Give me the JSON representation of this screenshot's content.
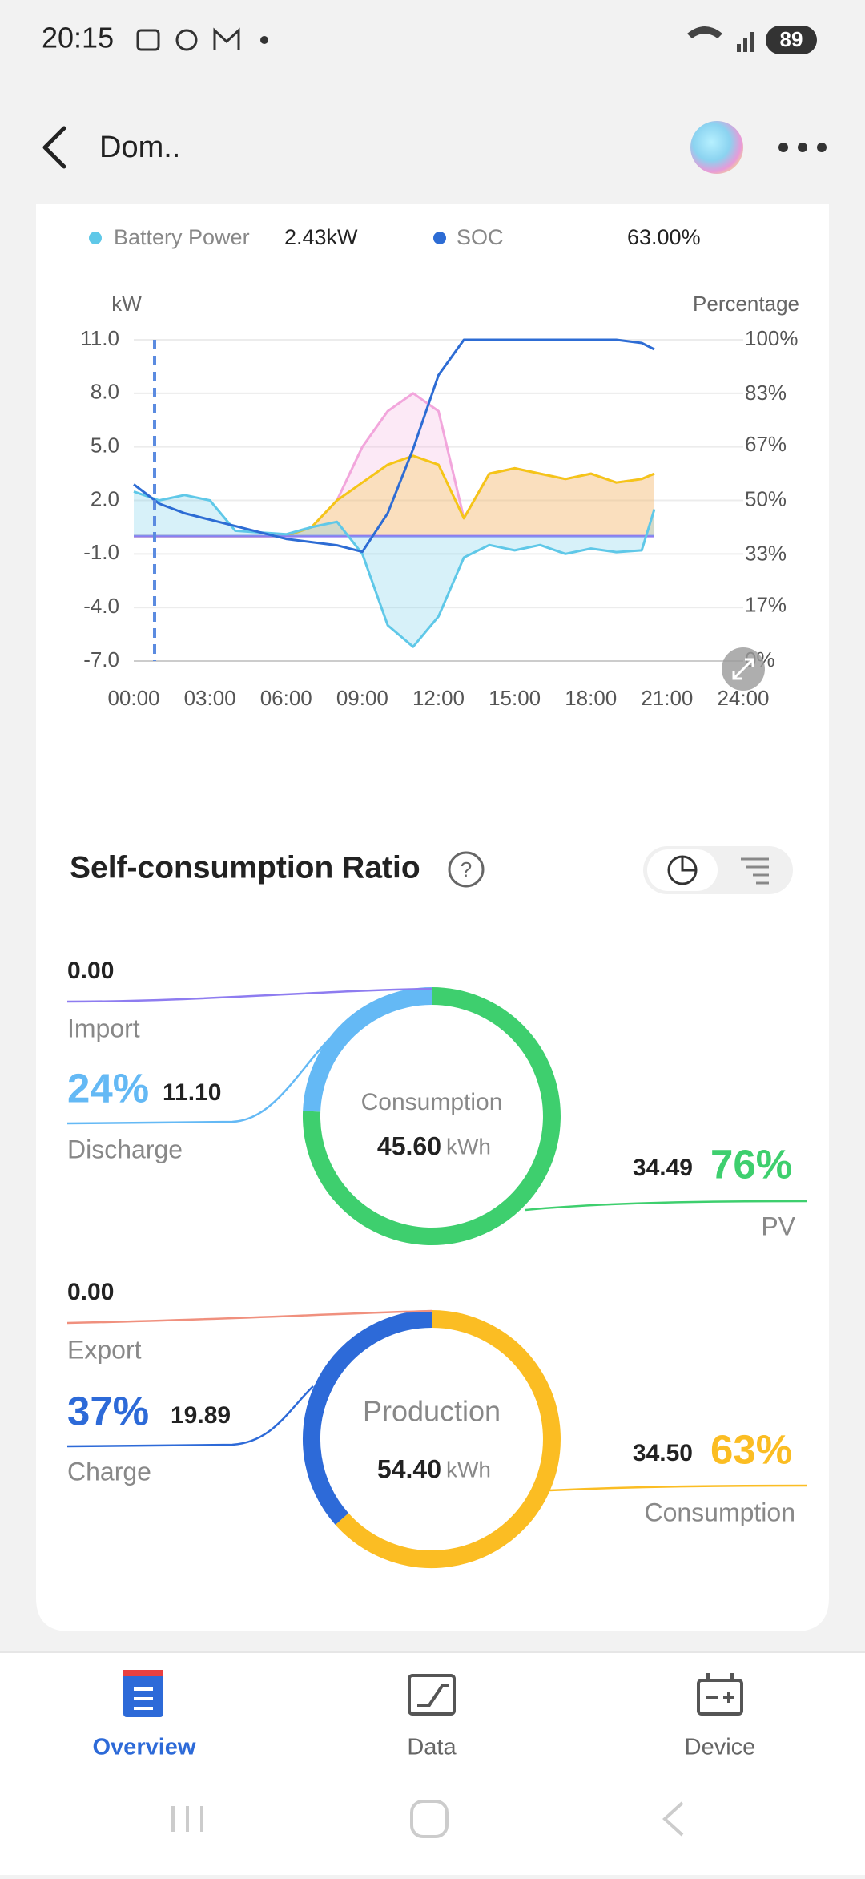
{
  "status_bar": {
    "time": "20:15",
    "battery": "89"
  },
  "header": {
    "title": "Dom.."
  },
  "chart_data": {
    "type": "line",
    "x": [
      0,
      1,
      2,
      3,
      4,
      5,
      6,
      7,
      8,
      9,
      10,
      11,
      12,
      13,
      14,
      15,
      16,
      17,
      18,
      19,
      20,
      20.5
    ],
    "xlim": [
      0,
      24
    ],
    "xticks": [
      {
        "value": 0,
        "label": "00:00"
      },
      {
        "value": 3,
        "label": "03:00"
      },
      {
        "value": 6,
        "label": "06:00"
      },
      {
        "value": 9,
        "label": "09:00"
      },
      {
        "value": 12,
        "label": "12:00"
      },
      {
        "value": 15,
        "label": "15:00"
      },
      {
        "value": 18,
        "label": "18:00"
      },
      {
        "value": 21,
        "label": "21:00"
      },
      {
        "value": 24,
        "label": "24:00"
      }
    ],
    "ylim": [
      -7,
      11
    ],
    "yticks": [
      {
        "value": 11,
        "label": "11.0"
      },
      {
        "value": 8,
        "label": "8.0"
      },
      {
        "value": 5,
        "label": "5.0"
      },
      {
        "value": 2,
        "label": "2.0"
      },
      {
        "value": -1,
        "label": "-1.0"
      },
      {
        "value": -4,
        "label": "-4.0"
      },
      {
        "value": -7,
        "label": "-7.0"
      }
    ],
    "y2lim": [
      0,
      100
    ],
    "y2ticks": [
      {
        "value": 100,
        "label": "100%"
      },
      {
        "value": 83,
        "label": "83%"
      },
      {
        "value": 67,
        "label": "67%"
      },
      {
        "value": 50,
        "label": "50%"
      },
      {
        "value": 33,
        "label": "33%"
      },
      {
        "value": 17,
        "label": "17%"
      },
      {
        "value": 0,
        "label": "0%"
      }
    ],
    "ylabel": "kW",
    "y2label": "Percentage",
    "grid": true,
    "legend_values": [
      "2.43kW",
      "63.00%"
    ],
    "series": [
      {
        "name": "Battery Power",
        "color": "#5fc8e8",
        "area": true,
        "values": [
          2.5,
          2.0,
          2.3,
          2.0,
          0.3,
          0.2,
          0.1,
          0.5,
          0.8,
          -1.0,
          -5.0,
          -6.2,
          -4.5,
          -1.2,
          -0.5,
          -0.8,
          -0.5,
          -1.0,
          -0.7,
          -0.9,
          -0.8,
          1.5
        ]
      },
      {
        "name": "SOC",
        "color": "#2d6cd4",
        "axis": "y2",
        "values": [
          55,
          49,
          46,
          44,
          42,
          40,
          38,
          37,
          36,
          34,
          46,
          66,
          89,
          100,
          100,
          100,
          100,
          100,
          100,
          100,
          99,
          97
        ]
      },
      {
        "color": "#f2a6dc",
        "area": true,
        "values": [
          0,
          0,
          0,
          0,
          0,
          0,
          0,
          0.5,
          2,
          5,
          7,
          8,
          7,
          1,
          3.5,
          3.8,
          3.5,
          3.2,
          3.5,
          3.0,
          3.2,
          3.5
        ]
      },
      {
        "color": "#f5c518",
        "area": true,
        "values": [
          0,
          0,
          0,
          0,
          0,
          0,
          0,
          0.5,
          2,
          3,
          4,
          4.5,
          4,
          1,
          3.5,
          3.8,
          3.5,
          3.2,
          3.5,
          3.0,
          3.2,
          3.5
        ]
      },
      {
        "color": "#8e7cf0",
        "values": [
          0,
          0,
          0,
          0,
          0,
          0,
          0,
          0,
          0,
          0,
          0,
          0,
          0,
          0,
          0,
          0,
          0,
          0,
          0,
          0,
          0,
          0
        ]
      }
    ]
  },
  "self_consumption": {
    "title": "Self-consumption Ratio",
    "help": "?",
    "donuts": [
      {
        "center_label": "Consumption",
        "total": "45.60",
        "unit": "kWh",
        "segments": [
          {
            "name": "PV",
            "value": 34.49,
            "percent": "76%",
            "color": "#3ecf6e"
          },
          {
            "name": "Discharge",
            "value": 11.1,
            "value_label": "11.10",
            "percent": "24%",
            "color": "#64b9f5"
          },
          {
            "name": "Import",
            "value": 0,
            "value_label": "0.00",
            "color": "#8e7cf0"
          }
        ]
      },
      {
        "center_label": "Production",
        "total": "54.40",
        "unit": "kWh",
        "segments": [
          {
            "name": "Consumption",
            "value": 34.5,
            "value_label": "34.50",
            "percent": "63%",
            "color": "#fbbd23"
          },
          {
            "name": "Charge",
            "value": 19.89,
            "percent": "37%",
            "color": "#2d6ad8"
          },
          {
            "name": "Export",
            "value": 0,
            "value_label": "0.00",
            "color": "#f0907e"
          }
        ]
      }
    ]
  },
  "bottom_nav": {
    "items": [
      {
        "label": "Overview",
        "active": true
      },
      {
        "label": "Data"
      },
      {
        "label": "Device"
      }
    ]
  }
}
